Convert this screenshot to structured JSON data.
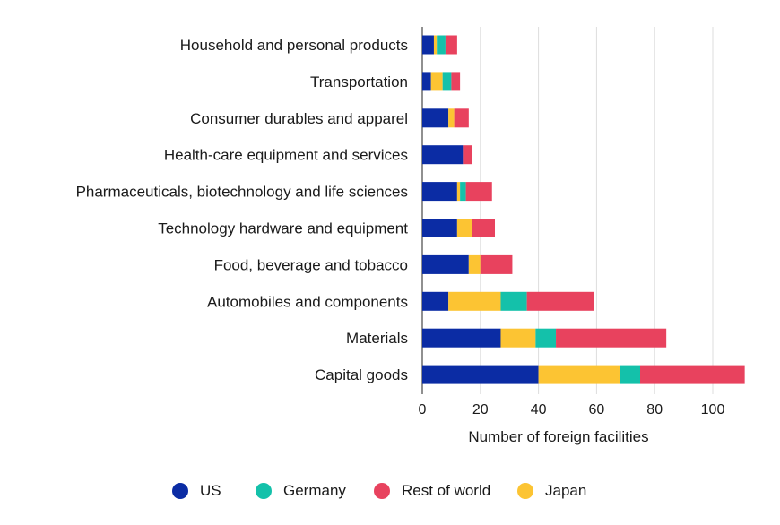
{
  "chart_data": {
    "type": "bar",
    "orientation": "horizontal",
    "stacked": true,
    "title": "",
    "xlabel": "Number of foreign facilities",
    "ylabel": "",
    "xlim": [
      0,
      110
    ],
    "xticks": [
      0,
      20,
      40,
      60,
      80,
      100
    ],
    "grid": true,
    "legend_position": "bottom",
    "categories": [
      "Household and personal products",
      "Transportation",
      "Consumer durables and apparel",
      "Health-care equipment and services",
      "Pharmaceuticals, biotechnology and life sciences",
      "Technology hardware and equipment",
      "Food, beverage and tobacco",
      "Automobiles and components",
      "Materials",
      "Capital goods"
    ],
    "series": [
      {
        "name": "US",
        "color": "#0b2ca4",
        "values": [
          4,
          3,
          9,
          14,
          12,
          12,
          16,
          9,
          27,
          40
        ]
      },
      {
        "name": "Japan",
        "color": "#fcc433",
        "values": [
          1,
          4,
          2,
          0,
          1,
          5,
          4,
          18,
          12,
          28
        ]
      },
      {
        "name": "Germany",
        "color": "#14c1aa",
        "values": [
          3,
          3,
          0,
          0,
          2,
          0,
          0,
          9,
          7,
          7
        ]
      },
      {
        "name": "Rest of world",
        "color": "#e8425e",
        "values": [
          4,
          3,
          5,
          3,
          9,
          8,
          11,
          23,
          38,
          36
        ]
      }
    ]
  },
  "legend": [
    {
      "label": "US",
      "color": "#0b2ca4"
    },
    {
      "label": "Germany",
      "color": "#14c1aa"
    },
    {
      "label": "Rest of world",
      "color": "#e8425e"
    },
    {
      "label": "Japan",
      "color": "#fcc433"
    }
  ]
}
